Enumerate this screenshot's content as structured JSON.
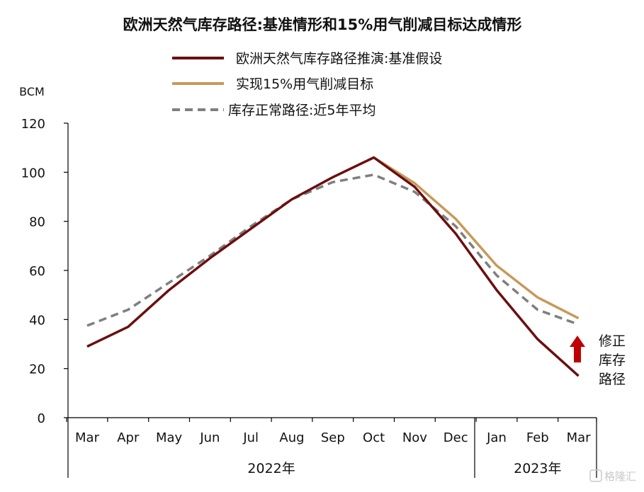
{
  "chart_data": {
    "type": "line",
    "title": "欧洲天然气库存路径:基准情形和15%用气削减目标达成情形",
    "ylabel": "BCM",
    "ylim": [
      0,
      120
    ],
    "yticks": [
      0,
      20,
      40,
      60,
      80,
      100,
      120
    ],
    "categories": [
      "Mar",
      "Apr",
      "May",
      "Jun",
      "Jul",
      "Aug",
      "Sep",
      "Oct",
      "Nov",
      "Dec",
      "Jan",
      "Feb",
      "Mar"
    ],
    "year_groups": [
      {
        "label": "2022年",
        "count": 10
      },
      {
        "label": "2023年",
        "count": 3
      }
    ],
    "series": [
      {
        "name": "欧洲天然气库存路径推演:基准假设",
        "color": "#6b0f0f",
        "dash": "solid",
        "values": [
          29,
          37,
          52,
          65,
          77,
          89,
          98,
          106,
          94,
          75,
          52,
          32,
          17
        ]
      },
      {
        "name": "实现15%用气削减目标",
        "color": "#c8995a",
        "dash": "solid",
        "values": [
          null,
          null,
          null,
          null,
          null,
          null,
          null,
          106,
          95.5,
          81,
          62,
          49,
          40.5
        ]
      },
      {
        "name": "库存正常路径:近5年平均",
        "color": "#7f7f7f",
        "dash": "dashed",
        "values": [
          37.5,
          44,
          55,
          66,
          78,
          89,
          96,
          99,
          92,
          78,
          58,
          44,
          38
        ]
      }
    ],
    "legend_position": "top",
    "grid": false,
    "annotation": {
      "text_lines": [
        "修正",
        "库存",
        "路径"
      ],
      "arrow_color": "#c00000",
      "arrow_direction": "up"
    }
  },
  "watermark": "格隆汇"
}
